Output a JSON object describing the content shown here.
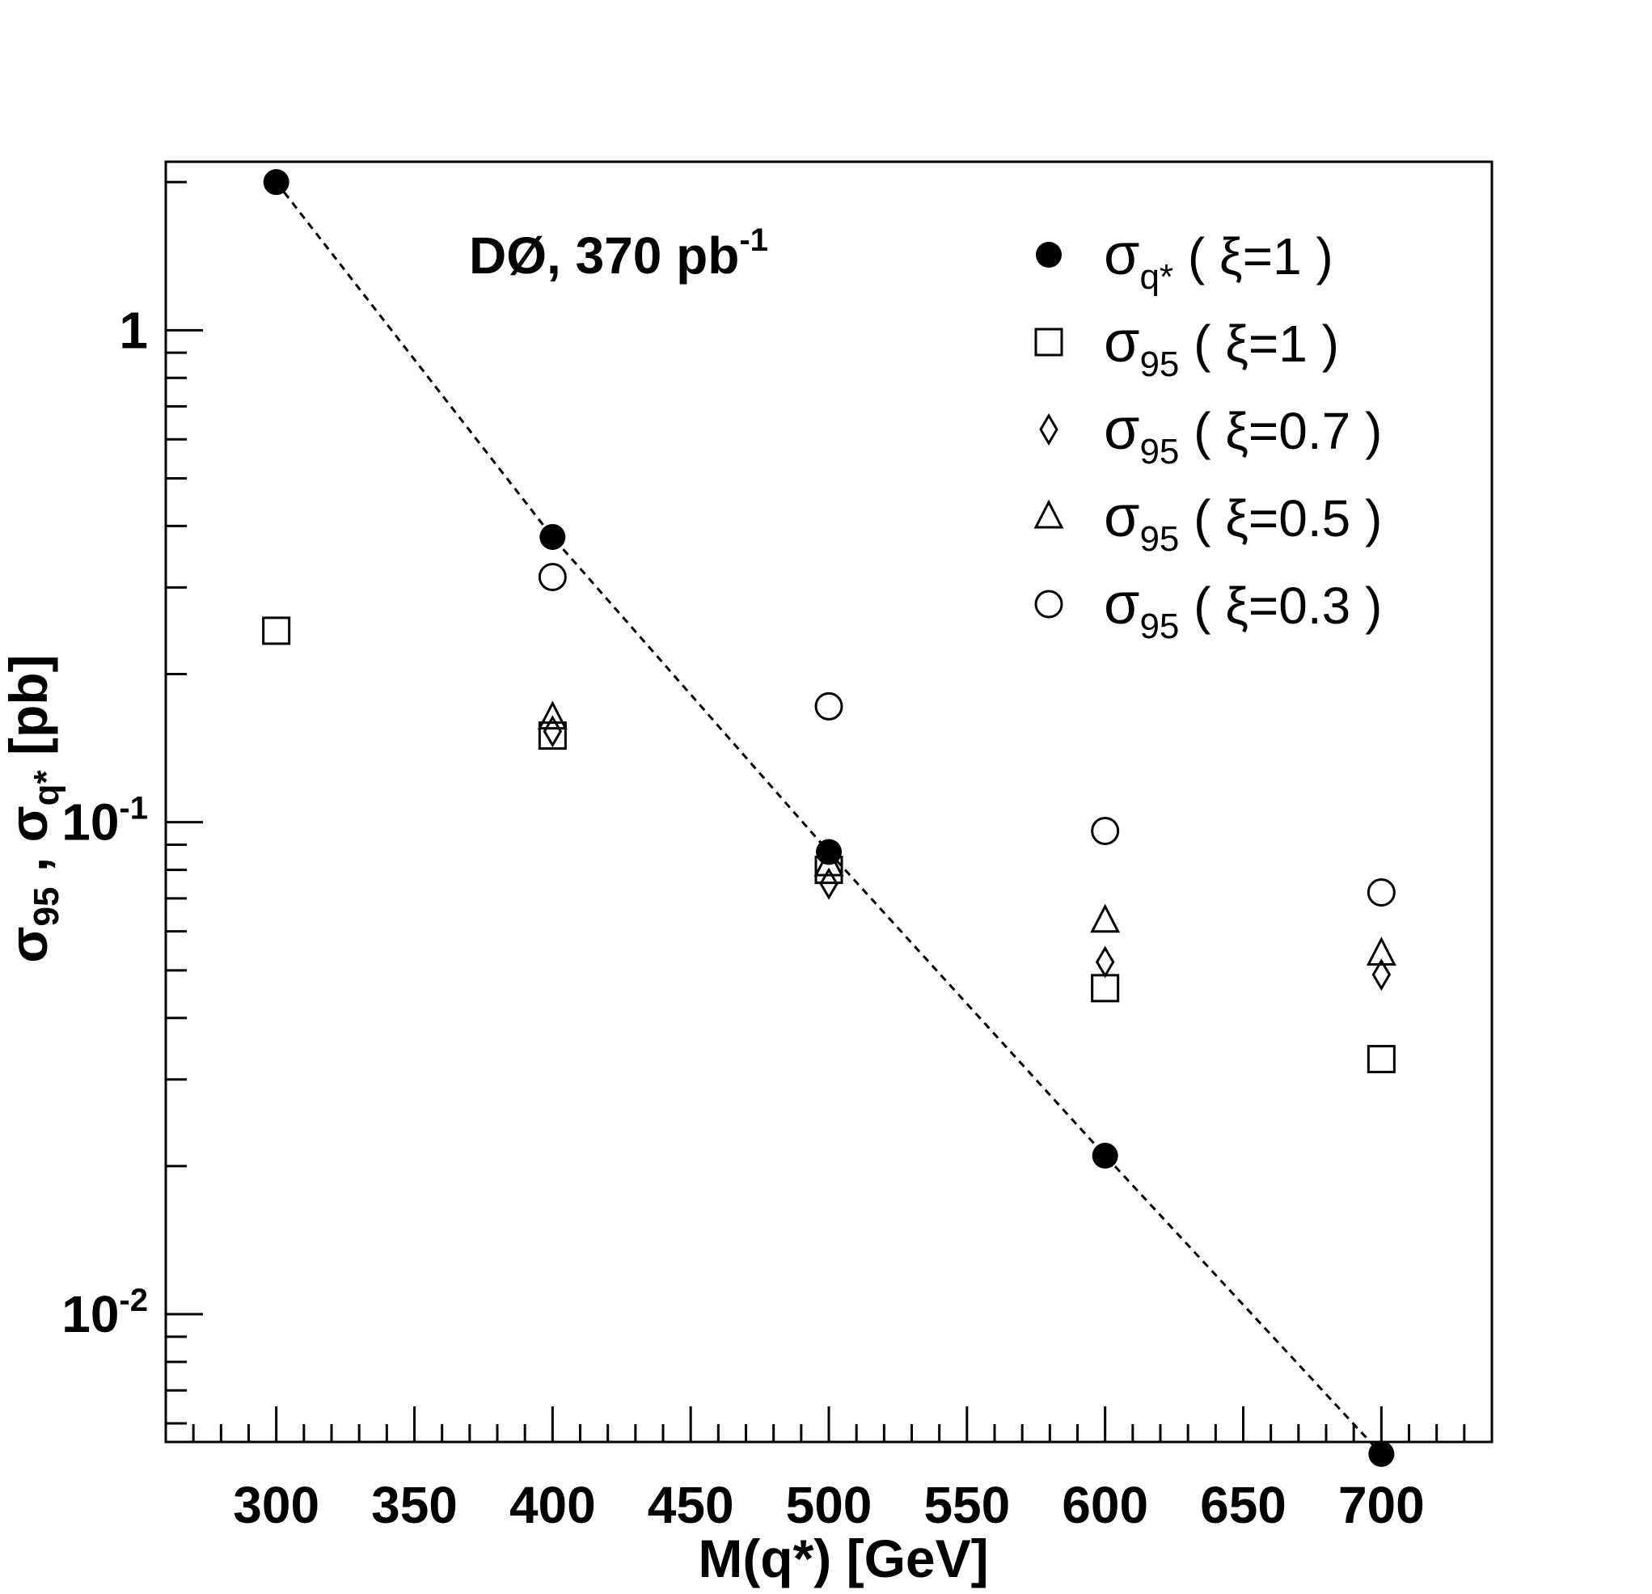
{
  "chart_data": {
    "type": "scatter",
    "title": "",
    "annotation": {
      "text": "DØ, 370 pb",
      "sup": "-1"
    },
    "xlabel": "M(q*)  [GeV]",
    "ylabel": {
      "part1": "σ",
      "part1_sub": "95",
      "sep": " , ",
      "part2": "σ",
      "part2_sub": "q*",
      "unit": "  [pb]"
    },
    "xlim": [
      260,
      740
    ],
    "ylim": [
      0.0055,
      2.2
    ],
    "yscale": "log",
    "grid": false,
    "legend_position": "top-right",
    "x_ticks": [
      300,
      350,
      400,
      450,
      500,
      550,
      600,
      650,
      700
    ],
    "y_ticks": [
      {
        "value": 1,
        "base": "1",
        "exp": ""
      },
      {
        "value": 0.1,
        "base": "10",
        "exp": "-1"
      },
      {
        "value": 0.01,
        "base": "10",
        "exp": "-2"
      }
    ],
    "fit_line": {
      "style": "dashed",
      "x": [
        300,
        400,
        500,
        600,
        700
      ],
      "y": [
        2.0,
        0.38,
        0.087,
        0.021,
        0.0052
      ]
    },
    "series": [
      {
        "key": "sq",
        "marker": "filled-circle",
        "legend": {
          "sym": "σ",
          "sub": "q*",
          "rest": "  ( ξ=1 )"
        },
        "x": [
          300,
          400,
          500,
          600,
          700
        ],
        "y": [
          2.0,
          0.38,
          0.087,
          0.021,
          0.0052
        ]
      },
      {
        "key": "s95_1",
        "marker": "open-square",
        "legend": {
          "sym": "σ",
          "sub": "95",
          "rest": "  ( ξ=1 )"
        },
        "x": [
          300,
          400,
          500,
          600,
          700
        ],
        "y": [
          0.245,
          0.15,
          0.08,
          0.046,
          0.033
        ]
      },
      {
        "key": "s95_07",
        "marker": "open-diamond",
        "legend": {
          "sym": "σ",
          "sub": "95",
          "rest": "  ( ξ=0.7 )"
        },
        "x": [
          400,
          500,
          600,
          700
        ],
        "y": [
          0.153,
          0.075,
          0.052,
          0.049
        ]
      },
      {
        "key": "s95_05",
        "marker": "open-triangle",
        "legend": {
          "sym": "σ",
          "sub": "95",
          "rest": "  ( ξ=0.5 )"
        },
        "x": [
          400,
          500,
          600,
          700
        ],
        "y": [
          0.163,
          0.082,
          0.063,
          0.054
        ]
      },
      {
        "key": "s95_03",
        "marker": "open-circle",
        "legend": {
          "sym": "σ",
          "sub": "95",
          "rest": "  ( ξ=0.3 )"
        },
        "x": [
          400,
          500,
          600,
          700
        ],
        "y": [
          0.315,
          0.172,
          0.096,
          0.072
        ]
      }
    ]
  }
}
